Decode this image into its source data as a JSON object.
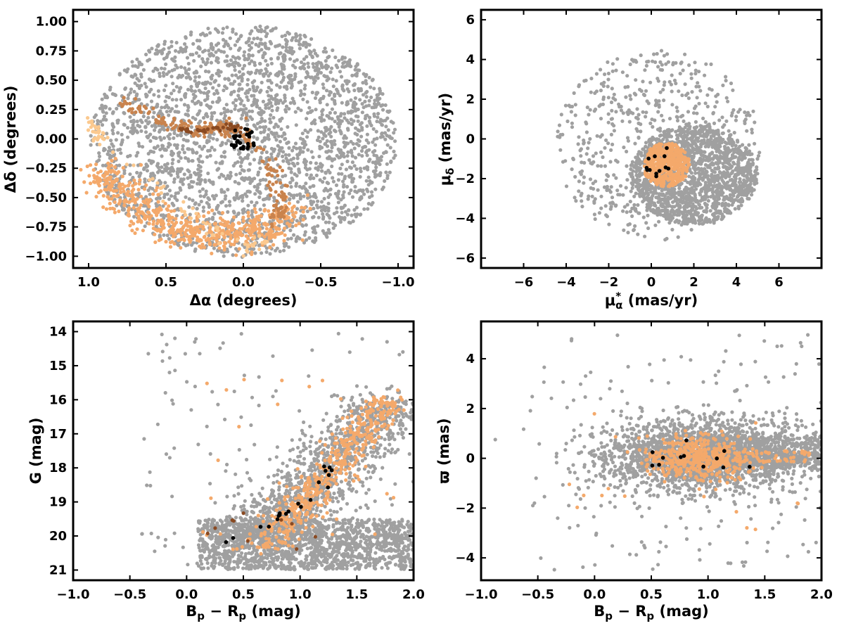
{
  "colors": {
    "background_stars": "#a0a0a0",
    "stream_light": "#f4a96b",
    "stream_pale": "#fbc98f",
    "stream_mid": "#c9834d",
    "stream_dark": "#8a4a22",
    "cluster": "#000000"
  },
  "chart_data": [
    {
      "type": "scatter",
      "panel": "top-left",
      "xlabel": "Δα (degrees)",
      "ylabel": "Δδ (degrees)",
      "xlim": [
        1.1,
        -1.1
      ],
      "ylim": [
        -1.1,
        1.1
      ],
      "x_ticks": [
        1.0,
        0.5,
        0.0,
        -0.5,
        -1.0
      ],
      "x_tick_labels": [
        "1.0",
        "0.5",
        "0.0",
        "−0.5",
        "−1.0"
      ],
      "y_ticks": [
        1.0,
        0.75,
        0.5,
        0.25,
        0.0,
        -0.25,
        -0.5,
        -0.75,
        -1.0
      ],
      "y_tick_labels": [
        "1.00",
        "0.75",
        "0.50",
        "0.25",
        "0.00",
        "−0.25",
        "−0.50",
        "−0.75",
        "−1.00"
      ],
      "grid": false,
      "series": [
        {
          "color": "background_stars",
          "distribution": "uniform disk, radius 1.0 deg",
          "center": [
            0.0,
            -0.02
          ],
          "radius": [
            0.99,
            0.99
          ],
          "count": 2600
        },
        {
          "color": "stream_light",
          "distribution": "arc band, lower-left",
          "path": [
            [
              0.92,
              -0.25
            ],
            [
              0.8,
              -0.45
            ],
            [
              0.65,
              -0.62
            ],
            [
              0.45,
              -0.75
            ],
            [
              0.25,
              -0.82
            ],
            [
              0.05,
              -0.82
            ],
            [
              -0.15,
              -0.75
            ],
            [
              -0.3,
              -0.62
            ]
          ],
          "width": 0.12,
          "count": 600
        },
        {
          "color": "stream_pale",
          "distribution": "edge patches",
          "path": [
            [
              0.98,
              0.15
            ],
            [
              0.9,
              -0.05
            ],
            [
              0.0,
              -0.95
            ],
            [
              -0.15,
              -0.88
            ]
          ],
          "width": 0.05,
          "count": 80
        },
        {
          "color": "stream_mid",
          "distribution": "upper arm and right branch",
          "path": [
            [
              0.78,
              0.32
            ],
            [
              0.6,
              0.22
            ],
            [
              0.45,
              0.12
            ],
            [
              0.3,
              0.07
            ],
            [
              0.15,
              0.08
            ],
            [
              0.05,
              0.12
            ],
            [
              -0.2,
              -0.28
            ],
            [
              -0.25,
              -0.55
            ],
            [
              -0.2,
              -0.7
            ]
          ],
          "width": 0.05,
          "count": 220
        },
        {
          "color": "stream_dark",
          "distribution": "ribbon to cluster",
          "path": [
            [
              0.4,
              0.08
            ],
            [
              0.25,
              0.07
            ],
            [
              0.1,
              0.11
            ],
            [
              0.0,
              0.09
            ]
          ],
          "width": 0.025,
          "count": 40
        },
        {
          "color": "cluster",
          "distribution": "compact cluster",
          "center": [
            0.0,
            0.0
          ],
          "radius": [
            0.1,
            0.09
          ],
          "count": 26
        }
      ]
    },
    {
      "type": "scatter",
      "panel": "top-right",
      "xlabel": "μ*α  (mas/yr)",
      "ylabel": "μδ (mas/yr)",
      "xlim": [
        -8.0,
        8.0
      ],
      "ylim": [
        -6.5,
        6.5
      ],
      "x_ticks": [
        -6,
        -4,
        -2,
        0,
        2,
        4,
        6
      ],
      "x_tick_labels": [
        "−6",
        "−4",
        "−2",
        "0",
        "2",
        "4",
        "6"
      ],
      "y_ticks": [
        6,
        4,
        2,
        0,
        -2,
        -4,
        -6
      ],
      "y_tick_labels": [
        "6",
        "4",
        "2",
        "0",
        "−2",
        "−4",
        "−6"
      ],
      "grid": false,
      "series": [
        {
          "color": "background_stars",
          "distribution": "sparse disk",
          "center": [
            0.3,
            -0.3
          ],
          "radius": [
            4.8,
            4.8
          ],
          "count": 650
        },
        {
          "color": "background_stars",
          "distribution": "dense clump",
          "center": [
            2.0,
            -1.8
          ],
          "radius": [
            3.0,
            2.5
          ],
          "count": 1500
        },
        {
          "color": "stream_light",
          "distribution": "compact clump",
          "center": [
            0.7,
            -1.3
          ],
          "radius": [
            1.1,
            1.1
          ],
          "count": 420
        },
        {
          "color": "cluster",
          "distribution": "compact clump",
          "center": [
            0.5,
            -1.2
          ],
          "radius": [
            0.8,
            0.8
          ],
          "count": 12
        }
      ]
    },
    {
      "type": "scatter",
      "panel": "bottom-left",
      "xlabel": "Bp − Rp (mag)",
      "ylabel": "G (mag)",
      "xlim": [
        -1.0,
        2.0
      ],
      "ylim": [
        21.3,
        13.7
      ],
      "x_ticks": [
        -1.0,
        -0.5,
        0.0,
        0.5,
        1.0,
        1.5,
        2.0
      ],
      "x_tick_labels": [
        "−1.0",
        "−0.5",
        "0.0",
        "0.5",
        "1.0",
        "1.5",
        "2.0"
      ],
      "y_ticks": [
        21,
        20,
        19,
        18,
        17,
        16,
        15,
        14
      ],
      "y_tick_labels": [
        "21",
        "20",
        "19",
        "18",
        "17",
        "16",
        "15",
        "14"
      ],
      "grid": false,
      "series": [
        {
          "color": "background_stars",
          "distribution": "faint band",
          "x_range": [
            0.1,
            2.0
          ],
          "y_range": [
            19.5,
            20.98
          ],
          "count": 1500
        },
        {
          "color": "background_stars",
          "distribution": "main sequence",
          "path": [
            [
              0.5,
              20.2
            ],
            [
              0.8,
              19.4
            ],
            [
              1.0,
              18.8
            ],
            [
              1.2,
              18.2
            ],
            [
              1.4,
              17.5
            ],
            [
              1.6,
              16.8
            ],
            [
              1.75,
              16.0
            ]
          ],
          "width": 0.35,
          "count": 1200
        },
        {
          "color": "background_stars",
          "distribution": "scattered",
          "x_range": [
            -0.4,
            2.0
          ],
          "y_range": [
            14.0,
            21.0
          ],
          "count": 150
        },
        {
          "color": "stream_light",
          "distribution": "main sequence",
          "path": [
            [
              0.7,
              20.4
            ],
            [
              0.9,
              19.5
            ],
            [
              1.1,
              18.8
            ],
            [
              1.3,
              18.0
            ],
            [
              1.45,
              17.3
            ],
            [
              1.6,
              16.7
            ],
            [
              1.75,
              16.0
            ]
          ],
          "width": 0.18,
          "count": 500
        },
        {
          "color": "stream_light",
          "distribution": "scattered",
          "x_range": [
            0.1,
            1.9
          ],
          "y_range": [
            15.3,
            20.6
          ],
          "count": 30
        },
        {
          "color": "stream_dark",
          "distribution": "scattered",
          "x_range": [
            0.1,
            1.2
          ],
          "y_range": [
            19.3,
            20.4
          ],
          "count": 10
        },
        {
          "color": "cluster",
          "distribution": "sequence",
          "path": [
            [
              0.4,
              20.2
            ],
            [
              0.8,
              19.5
            ],
            [
              1.0,
              19.0
            ],
            [
              1.2,
              18.5
            ],
            [
              1.3,
              17.9
            ]
          ],
          "width": 0.08,
          "count": 20
        }
      ]
    },
    {
      "type": "scatter",
      "panel": "bottom-right",
      "xlabel": "Bp − Rp (mag)",
      "ylabel": "ϖ (mas)",
      "xlim": [
        -1.0,
        2.0
      ],
      "ylim": [
        -4.9,
        5.5
      ],
      "x_ticks": [
        -1.0,
        -0.5,
        0.0,
        0.5,
        1.0,
        1.5,
        2.0
      ],
      "x_tick_labels": [
        "−1.0",
        "−0.5",
        "0.0",
        "0.5",
        "1.0",
        "1.5",
        "2.0"
      ],
      "y_ticks": [
        4,
        2,
        0,
        -2,
        -4
      ],
      "y_tick_labels": [
        "4",
        "2",
        "0",
        "−2",
        "−4"
      ],
      "grid": false,
      "series": [
        {
          "color": "background_stars",
          "distribution": "gaussian band",
          "center": [
            0.95,
            0.1
          ],
          "sigma": [
            0.45,
            0.7
          ],
          "count": 2200
        },
        {
          "color": "background_stars",
          "distribution": "red tail",
          "x_range": [
            1.0,
            2.0
          ],
          "y_range": [
            -0.4,
            0.9
          ],
          "count": 500
        },
        {
          "color": "background_stars",
          "distribution": "scattered",
          "x_range": [
            -0.6,
            2.0
          ],
          "y_range": [
            -4.5,
            5.0
          ],
          "count": 180
        },
        {
          "color": "stream_light",
          "distribution": "gaussian clump",
          "center": [
            0.9,
            0.0
          ],
          "sigma": [
            0.22,
            0.45
          ],
          "count": 420
        },
        {
          "color": "stream_light",
          "distribution": "red tail",
          "x_range": [
            1.1,
            1.9
          ],
          "y_range": [
            -0.2,
            0.3
          ],
          "count": 60
        },
        {
          "color": "stream_light",
          "distribution": "scattered",
          "x_range": [
            -0.3,
            1.9
          ],
          "y_range": [
            -2.9,
            1.9
          ],
          "count": 20
        },
        {
          "color": "cluster",
          "distribution": "gaussian clump",
          "center": [
            0.8,
            0.2
          ],
          "sigma": [
            0.25,
            0.35
          ],
          "count": 12
        }
      ]
    }
  ]
}
